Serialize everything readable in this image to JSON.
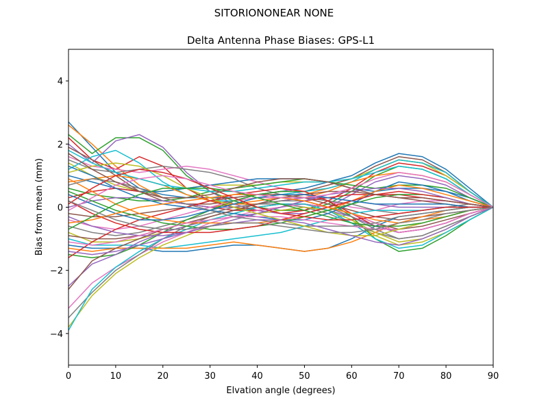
{
  "suptitle": "SITORIONONEAR   NONE",
  "chart_data": {
    "type": "line",
    "title": "Delta Antenna Phase Biases: GPS-L1",
    "xlabel": "Elvation angle (degrees)",
    "ylabel": "Bias from mean (mm)",
    "xlim": [
      0,
      90
    ],
    "ylim": [
      -5,
      5
    ],
    "xticks": [
      0,
      10,
      20,
      30,
      40,
      50,
      60,
      70,
      80,
      90
    ],
    "yticks": [
      -4,
      -2,
      0,
      2,
      4
    ],
    "xtick_labels": [
      "0",
      "10",
      "20",
      "30",
      "40",
      "50",
      "60",
      "70",
      "80",
      "90"
    ],
    "ytick_labels": [
      "−4",
      "−2",
      "0",
      "2",
      "4"
    ],
    "grid": false,
    "legend": "none",
    "x": [
      0,
      5,
      10,
      15,
      20,
      25,
      30,
      35,
      40,
      45,
      50,
      55,
      60,
      65,
      70,
      75,
      80,
      85,
      90
    ],
    "colors": [
      "#1f77b4",
      "#ff7f0e",
      "#2ca02c",
      "#d62728",
      "#9467bd",
      "#8c564b",
      "#e377c2",
      "#7f7f7f",
      "#bcbd22",
      "#17becf"
    ],
    "series": [
      {
        "values": [
          2.7,
          1.9,
          1.1,
          0.6,
          0.4,
          0.3,
          0.3,
          0.3,
          0.4,
          0.5,
          0.6,
          0.8,
          1.0,
          1.4,
          1.7,
          1.6,
          1.2,
          0.6,
          0.0
        ]
      },
      {
        "values": [
          2.6,
          2.0,
          1.3,
          0.7,
          0.3,
          0.1,
          0.0,
          0.1,
          0.2,
          0.3,
          0.4,
          0.6,
          0.8,
          1.2,
          1.5,
          1.4,
          1.1,
          0.5,
          0.0
        ]
      },
      {
        "values": [
          2.3,
          1.7,
          2.2,
          2.2,
          1.8,
          1.0,
          0.5,
          0.2,
          0.0,
          -0.1,
          -0.1,
          0.1,
          0.5,
          1.0,
          1.3,
          1.2,
          0.9,
          0.4,
          0.0
        ]
      },
      {
        "values": [
          2.2,
          1.5,
          1.2,
          1.6,
          1.3,
          0.6,
          0.2,
          0.0,
          -0.1,
          -0.2,
          -0.1,
          0.2,
          0.6,
          1.1,
          1.4,
          1.3,
          1.0,
          0.5,
          0.0
        ]
      },
      {
        "values": [
          2.0,
          1.4,
          2.1,
          2.3,
          1.9,
          1.1,
          0.5,
          0.1,
          -0.1,
          -0.2,
          -0.2,
          0.0,
          0.4,
          0.8,
          1.0,
          0.9,
          0.7,
          0.3,
          0.0
        ]
      },
      {
        "values": [
          1.9,
          1.5,
          1.0,
          0.5,
          0.2,
          0.1,
          0.1,
          0.2,
          0.4,
          0.5,
          0.5,
          0.7,
          0.9,
          1.3,
          1.6,
          1.5,
          1.1,
          0.5,
          0.0
        ]
      },
      {
        "values": [
          1.6,
          1.3,
          1.2,
          1.1,
          1.2,
          1.3,
          1.2,
          1.0,
          0.8,
          0.6,
          0.4,
          0.2,
          0.0,
          -0.1,
          0.1,
          0.2,
          0.2,
          0.1,
          0.0
        ]
      },
      {
        "values": [
          1.5,
          1.2,
          1.1,
          1.2,
          1.3,
          1.2,
          1.1,
          0.9,
          0.6,
          0.4,
          0.3,
          0.2,
          0.1,
          -0.1,
          -0.2,
          -0.1,
          0.0,
          0.1,
          0.0
        ]
      },
      {
        "values": [
          1.4,
          1.0,
          0.7,
          0.5,
          0.5,
          0.6,
          0.7,
          0.7,
          0.7,
          0.8,
          0.8,
          0.8,
          0.9,
          1.2,
          1.5,
          1.4,
          1.0,
          0.5,
          0.0
        ]
      },
      {
        "values": [
          1.2,
          1.6,
          1.8,
          1.4,
          0.8,
          0.4,
          0.2,
          0.2,
          0.3,
          0.4,
          0.5,
          0.6,
          0.8,
          1.2,
          1.5,
          1.4,
          1.1,
          0.5,
          0.0
        ]
      },
      {
        "values": [
          1.0,
          0.8,
          0.6,
          0.5,
          0.5,
          0.6,
          0.7,
          0.8,
          0.9,
          0.9,
          0.9,
          0.8,
          0.6,
          0.5,
          0.6,
          0.6,
          0.5,
          0.3,
          0.0
        ]
      },
      {
        "values": [
          0.8,
          0.9,
          1.0,
          0.9,
          0.7,
          0.4,
          0.2,
          0.1,
          0.1,
          0.2,
          0.3,
          0.5,
          0.8,
          1.0,
          1.1,
          1.0,
          0.8,
          0.4,
          0.0
        ]
      },
      {
        "values": [
          0.6,
          0.4,
          0.3,
          0.2,
          0.2,
          0.3,
          0.5,
          0.6,
          0.7,
          0.8,
          0.9,
          0.8,
          0.7,
          0.6,
          0.7,
          0.7,
          0.6,
          0.3,
          0.0
        ]
      },
      {
        "values": [
          0.3,
          0.5,
          0.6,
          0.5,
          0.3,
          0.1,
          0.0,
          -0.1,
          -0.1,
          0.0,
          0.2,
          0.3,
          0.4,
          0.4,
          0.4,
          0.3,
          0.2,
          0.1,
          0.0
        ]
      },
      {
        "values": [
          0.0,
          0.2,
          0.3,
          0.3,
          0.2,
          0.1,
          0.0,
          0.0,
          0.1,
          0.2,
          0.3,
          0.3,
          0.2,
          0.1,
          0.0,
          0.0,
          0.0,
          0.0,
          0.0
        ]
      },
      {
        "values": [
          -0.2,
          -0.3,
          -0.3,
          -0.2,
          -0.1,
          0.0,
          0.2,
          0.3,
          0.4,
          0.4,
          0.3,
          0.1,
          -0.1,
          -0.3,
          -0.4,
          -0.3,
          -0.2,
          -0.1,
          0.0
        ]
      },
      {
        "values": [
          -0.4,
          -0.6,
          -0.7,
          -0.6,
          -0.4,
          -0.2,
          0.0,
          0.2,
          0.3,
          0.3,
          0.2,
          0.0,
          -0.3,
          -0.6,
          -0.8,
          -0.7,
          -0.5,
          -0.2,
          0.0
        ]
      },
      {
        "values": [
          -0.6,
          -0.8,
          -0.9,
          -0.8,
          -0.6,
          -0.4,
          -0.2,
          0.0,
          0.1,
          0.1,
          0.0,
          -0.2,
          -0.5,
          -0.8,
          -1.0,
          -0.9,
          -0.6,
          -0.3,
          0.0
        ]
      },
      {
        "values": [
          -0.8,
          -1.1,
          -1.1,
          -1.0,
          -0.8,
          -0.6,
          -0.4,
          -0.2,
          0.0,
          0.1,
          0.1,
          -0.1,
          -0.4,
          -0.9,
          -1.2,
          -1.1,
          -0.8,
          -0.4,
          0.0
        ]
      },
      {
        "values": [
          -1.0,
          -1.2,
          -1.2,
          -1.2,
          -1.3,
          -1.2,
          -1.1,
          -1.0,
          -0.9,
          -0.8,
          -0.6,
          -0.4,
          -0.2,
          -0.1,
          -0.1,
          -0.1,
          0.0,
          0.0,
          0.0
        ]
      },
      {
        "values": [
          -1.2,
          -1.3,
          -1.3,
          -1.3,
          -1.4,
          -1.4,
          -1.3,
          -1.2,
          -1.2,
          -1.3,
          -1.4,
          -1.3,
          -1.0,
          -0.6,
          -0.3,
          -0.2,
          -0.1,
          0.0,
          0.0
        ]
      },
      {
        "values": [
          -1.3,
          -1.4,
          -1.3,
          -1.3,
          -1.3,
          -1.3,
          -1.2,
          -1.1,
          -1.2,
          -1.3,
          -1.4,
          -1.3,
          -1.1,
          -0.8,
          -0.5,
          -0.3,
          -0.1,
          0.0,
          0.0
        ]
      },
      {
        "values": [
          -1.5,
          -1.6,
          -1.5,
          -1.2,
          -0.8,
          -0.4,
          -0.1,
          0.2,
          0.4,
          0.5,
          0.5,
          0.2,
          -0.3,
          -1.0,
          -1.4,
          -1.3,
          -0.9,
          -0.4,
          0.0
        ]
      },
      {
        "values": [
          -1.6,
          -1.1,
          -0.7,
          -0.4,
          -0.2,
          0.0,
          0.2,
          0.4,
          0.5,
          0.6,
          0.5,
          0.2,
          -0.2,
          -0.6,
          -0.8,
          -0.7,
          -0.5,
          -0.2,
          0.0
        ]
      },
      {
        "values": [
          -2.5,
          -1.8,
          -1.5,
          -1.1,
          -0.8,
          -0.6,
          -0.4,
          -0.3,
          -0.2,
          -0.1,
          0.0,
          -0.1,
          -0.3,
          -0.6,
          -0.8,
          -0.7,
          -0.5,
          -0.2,
          0.0
        ]
      },
      {
        "values": [
          -2.6,
          -1.7,
          -1.3,
          -1.0,
          -0.7,
          -0.5,
          -0.3,
          -0.1,
          0.0,
          0.1,
          0.1,
          0.0,
          -0.2,
          -0.5,
          -0.7,
          -0.6,
          -0.4,
          -0.2,
          0.0
        ]
      },
      {
        "values": [
          -3.2,
          -2.4,
          -1.9,
          -1.5,
          -1.1,
          -0.8,
          -0.5,
          -0.3,
          -0.1,
          0.0,
          0.1,
          0.0,
          -0.2,
          -0.5,
          -0.8,
          -0.7,
          -0.5,
          -0.2,
          0.0
        ]
      },
      {
        "values": [
          -3.5,
          -2.7,
          -2.0,
          -1.5,
          -1.0,
          -0.6,
          -0.3,
          -0.1,
          0.1,
          0.2,
          0.2,
          0.0,
          -0.3,
          -0.7,
          -1.0,
          -0.9,
          -0.6,
          -0.3,
          0.0
        ]
      },
      {
        "values": [
          -3.8,
          -2.8,
          -2.1,
          -1.6,
          -1.2,
          -0.9,
          -0.6,
          -0.4,
          -0.2,
          -0.1,
          0.0,
          -0.1,
          -0.4,
          -0.8,
          -1.1,
          -1.0,
          -0.7,
          -0.3,
          0.0
        ]
      },
      {
        "values": [
          -3.9,
          -2.6,
          -1.9,
          -1.4,
          -1.0,
          -0.7,
          -0.4,
          -0.2,
          0.0,
          0.1,
          0.1,
          -0.1,
          -0.5,
          -1.0,
          -1.3,
          -1.2,
          -0.8,
          -0.4,
          0.0
        ]
      },
      {
        "values": [
          1.3,
          1.0,
          0.6,
          0.3,
          0.1,
          0.0,
          -0.1,
          -0.2,
          -0.3,
          -0.4,
          -0.4,
          -0.2,
          0.1,
          0.5,
          0.8,
          0.7,
          0.5,
          0.2,
          0.0
        ]
      },
      {
        "values": [
          0.9,
          0.5,
          0.1,
          -0.2,
          -0.4,
          -0.5,
          -0.5,
          -0.5,
          -0.5,
          -0.4,
          -0.3,
          -0.1,
          0.2,
          0.5,
          0.7,
          0.6,
          0.4,
          0.2,
          0.0
        ]
      },
      {
        "values": [
          0.5,
          0.2,
          -0.1,
          -0.3,
          -0.5,
          -0.6,
          -0.7,
          -0.7,
          -0.6,
          -0.5,
          -0.3,
          -0.1,
          0.1,
          0.3,
          0.4,
          0.4,
          0.3,
          0.1,
          0.0
        ]
      },
      {
        "values": [
          0.2,
          -0.2,
          -0.5,
          -0.7,
          -0.8,
          -0.8,
          -0.8,
          -0.7,
          -0.6,
          -0.4,
          -0.2,
          0.0,
          0.2,
          0.4,
          0.5,
          0.4,
          0.3,
          0.1,
          0.0
        ]
      },
      {
        "values": [
          -0.3,
          -0.6,
          -0.8,
          -0.9,
          -0.9,
          -0.8,
          -0.6,
          -0.4,
          -0.2,
          0.0,
          0.2,
          0.4,
          0.5,
          0.6,
          0.6,
          0.5,
          0.3,
          0.1,
          0.0
        ]
      },
      {
        "values": [
          -0.9,
          -1.0,
          -1.0,
          -0.9,
          -0.7,
          -0.5,
          -0.3,
          -0.1,
          0.1,
          0.3,
          0.4,
          0.5,
          0.5,
          0.4,
          0.3,
          0.2,
          0.1,
          0.0,
          0.0
        ]
      },
      {
        "values": [
          -1.1,
          -1.2,
          -1.1,
          -0.9,
          -0.7,
          -0.5,
          -0.4,
          -0.3,
          -0.3,
          -0.3,
          -0.4,
          -0.5,
          -0.6,
          -0.7,
          -0.7,
          -0.5,
          -0.3,
          -0.1,
          0.0
        ]
      },
      {
        "values": [
          0.7,
          0.9,
          0.8,
          0.6,
          0.3,
          0.1,
          -0.1,
          -0.3,
          -0.4,
          -0.5,
          -0.6,
          -0.6,
          -0.6,
          -0.5,
          -0.3,
          -0.2,
          -0.1,
          0.0,
          0.0
        ]
      },
      {
        "values": [
          1.1,
          1.3,
          1.4,
          1.3,
          1.0,
          0.6,
          0.3,
          0.0,
          -0.2,
          -0.4,
          -0.6,
          -0.8,
          -0.9,
          -0.9,
          -0.7,
          -0.5,
          -0.3,
          -0.1,
          0.0
        ]
      },
      {
        "values": [
          1.8,
          1.4,
          1.1,
          0.9,
          0.7,
          0.6,
          0.5,
          0.5,
          0.6,
          0.7,
          0.8,
          0.8,
          0.9,
          1.1,
          1.3,
          1.2,
          0.9,
          0.4,
          0.0
        ]
      },
      {
        "values": [
          0.4,
          0.1,
          -0.2,
          -0.4,
          -0.4,
          -0.3,
          -0.1,
          0.1,
          0.3,
          0.4,
          0.4,
          0.3,
          0.2,
          0.1,
          0.1,
          0.1,
          0.1,
          0.0,
          0.0
        ]
      },
      {
        "values": [
          -0.5,
          -0.4,
          -0.2,
          0.0,
          0.1,
          0.2,
          0.3,
          0.4,
          0.4,
          0.3,
          0.2,
          0.0,
          -0.2,
          -0.4,
          -0.5,
          -0.4,
          -0.3,
          -0.1,
          0.0
        ]
      },
      {
        "values": [
          -0.7,
          -0.3,
          0.1,
          0.4,
          0.6,
          0.6,
          0.6,
          0.5,
          0.3,
          0.1,
          -0.1,
          -0.3,
          -0.5,
          -0.6,
          -0.6,
          -0.5,
          -0.3,
          -0.1,
          0.0
        ]
      },
      {
        "values": [
          0.1,
          0.6,
          1.0,
          1.2,
          1.1,
          0.9,
          0.6,
          0.3,
          0.0,
          -0.2,
          -0.3,
          -0.4,
          -0.4,
          -0.3,
          -0.2,
          -0.1,
          0.0,
          0.0,
          0.0
        ]
      },
      {
        "values": [
          -1.4,
          -1.5,
          -1.4,
          -1.2,
          -1.0,
          -0.8,
          -0.6,
          -0.5,
          -0.4,
          -0.4,
          -0.5,
          -0.7,
          -0.9,
          -1.1,
          -1.2,
          -1.0,
          -0.7,
          -0.3,
          0.0
        ]
      },
      {
        "values": [
          1.7,
          1.2,
          0.8,
          0.5,
          0.3,
          0.3,
          0.4,
          0.6,
          0.8,
          0.9,
          0.9,
          0.8,
          0.6,
          0.4,
          0.3,
          0.3,
          0.2,
          0.1,
          0.0
        ]
      },
      {
        "values": [
          -0.1,
          0.3,
          0.7,
          0.9,
          1.0,
          0.9,
          0.7,
          0.5,
          0.4,
          0.3,
          0.3,
          0.4,
          0.6,
          0.9,
          1.1,
          1.0,
          0.8,
          0.4,
          0.0
        ]
      },
      {
        "values": [
          0.2,
          -0.1,
          -0.4,
          -0.6,
          -0.7,
          -0.7,
          -0.6,
          -0.5,
          -0.5,
          -0.6,
          -0.7,
          -0.8,
          -0.8,
          -0.7,
          -0.5,
          -0.4,
          -0.2,
          -0.1,
          0.0
        ]
      }
    ]
  }
}
